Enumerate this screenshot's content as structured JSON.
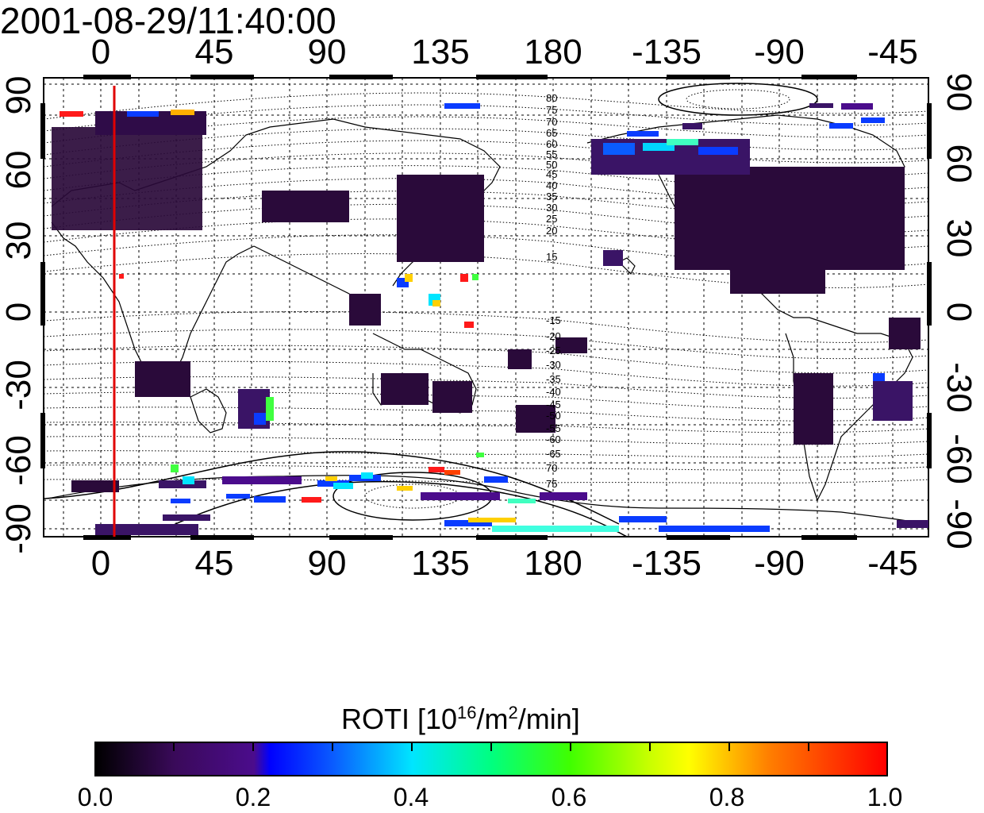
{
  "timestamp": "2001-08-29/11:40:00",
  "axes": {
    "x_top_ticks": [
      "0",
      "45",
      "90",
      "135",
      "180",
      "-135",
      "-90",
      "-45"
    ],
    "x_bottom_ticks": [
      "0",
      "45",
      "90",
      "135",
      "180",
      "-135",
      "-90",
      "-45"
    ],
    "y_left_ticks": [
      "90",
      "60",
      "30",
      "0",
      "-30",
      "-60",
      "-90"
    ],
    "y_right_ticks": [
      "90",
      "60",
      "30",
      "0",
      "-30",
      "-60",
      "-90"
    ]
  },
  "contour_labels_north": [
    "80",
    "75",
    "70",
    "65",
    "60",
    "55",
    "50",
    "45",
    "40",
    "35",
    "30",
    "25",
    "20",
    "15"
  ],
  "contour_labels_south": [
    "-15",
    "-20",
    "-25",
    "-30",
    "-35",
    "-40",
    "-45",
    "-50",
    "-55",
    "-60",
    "-65",
    "70",
    "75"
  ],
  "colorbar": {
    "title_main": "ROTI  [10",
    "title_sup1": "16",
    "title_mid": "/m",
    "title_sup2": "2",
    "title_end": "/min]",
    "tick_labels": [
      "0.0",
      "0.2",
      "0.4",
      "0.6",
      "0.8",
      "1.0"
    ],
    "min": 0.0,
    "max": 1.0
  },
  "colors": {
    "terminator_line": "#e00000",
    "low": "#2a0a3a",
    "purple": "#4b0c8c",
    "blue": "#0a3cff",
    "cyan": "#00e5ff",
    "green": "#40ff40",
    "yellow": "#ffd000",
    "red": "#ff0000"
  }
}
